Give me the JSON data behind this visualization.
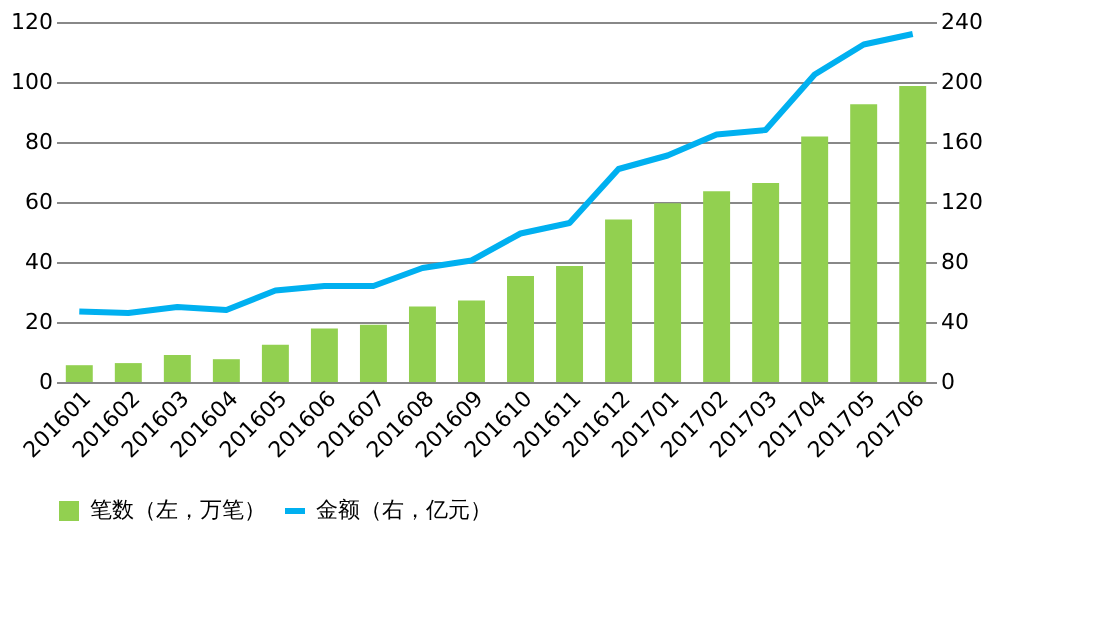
{
  "chart_data": {
    "type": "bar",
    "categories": [
      "201601",
      "201602",
      "201603",
      "201604",
      "201605",
      "201606",
      "201607",
      "201608",
      "201609",
      "201610",
      "201611",
      "201612",
      "201701",
      "201702",
      "201703",
      "201704",
      "201705",
      "201706"
    ],
    "series": [
      {
        "name": "笔数（左，万笔）",
        "color": "#92d050",
        "values": [
          5.6,
          6.3,
          9.0,
          7.6,
          12.4,
          17.8,
          19.1,
          25.2,
          27.2,
          35.3,
          38.7,
          54.2,
          59.6,
          63.6,
          66.3,
          81.8,
          92.6,
          98.7
        ]
      },
      {
        "name": "金额（右，亿元）",
        "type": "line",
        "axis": "y2",
        "color": "#00b0f0",
        "values": [
          47,
          46,
          50,
          48,
          61,
          64,
          64,
          76,
          81,
          99,
          106,
          142,
          151,
          165,
          168,
          205,
          225,
          232
        ]
      }
    ],
    "ylim": [
      0,
      120
    ],
    "yticks": [
      0,
      20,
      40,
      60,
      80,
      100,
      120
    ],
    "y2lim": [
      0,
      240
    ],
    "y2ticks": [
      0,
      40,
      80,
      120,
      160,
      200,
      240
    ],
    "grid": "y",
    "legend": "bottom"
  }
}
